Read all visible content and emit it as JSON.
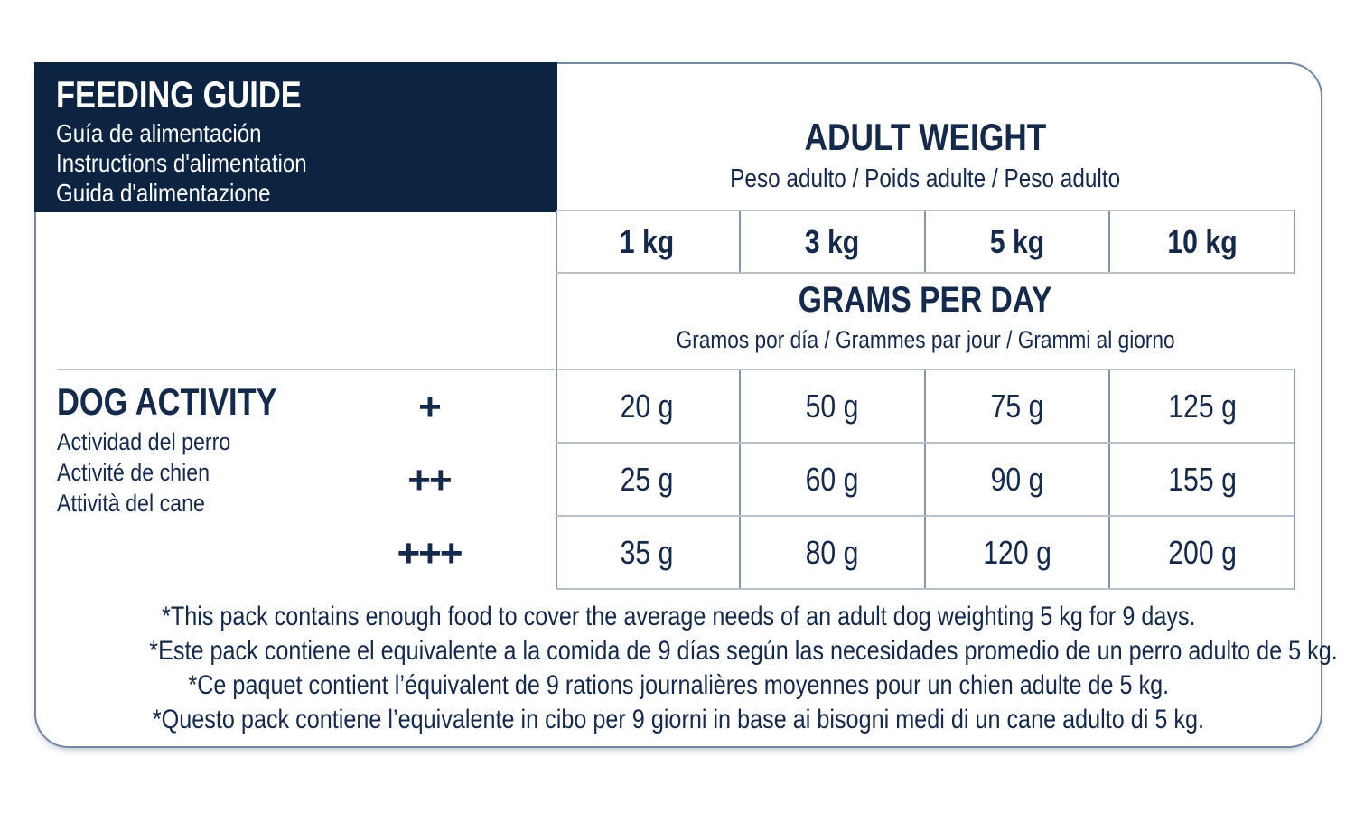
{
  "colors": {
    "navy_panel": "#0d2342",
    "text_navy": "#15294a",
    "grid_light": "#b9c1cb",
    "grid_dark": "#8695ab",
    "card_border": "#7287a6"
  },
  "header": {
    "title": "FEEDING GUIDE",
    "subtitles": [
      "Guía de alimentación",
      "Instructions d'alimentation",
      "Guida d'alimentazione"
    ]
  },
  "adult_weight": {
    "title": "ADULT WEIGHT",
    "subtitle": "Peso adulto / Poids adulte / Peso adulto"
  },
  "weights": [
    "1 kg",
    "3 kg",
    "5 kg",
    "10 kg"
  ],
  "grams": {
    "title": "GRAMS PER DAY",
    "subtitle": "Gramos por día / Grammes par jour / Grammi al giorno"
  },
  "dog_activity": {
    "title": "DOG ACTIVITY",
    "subtitles": [
      "Actividad del perro",
      "Activité de chien",
      "Attività del cane"
    ]
  },
  "rows": [
    {
      "activity": "+",
      "values": [
        "20 g",
        "50 g",
        "75 g",
        "125 g"
      ]
    },
    {
      "activity": "++",
      "values": [
        "25 g",
        "60 g",
        "90 g",
        "155 g"
      ]
    },
    {
      "activity": "+++",
      "values": [
        "35 g",
        "80 g",
        "120 g",
        "200 g"
      ]
    }
  ],
  "footnotes": [
    "*This pack contains enough food to cover the average needs of an adult dog weighting 5 kg for 9 days.",
    "*Este pack contiene el equivalente a la comida de 9 días según las necesidades promedio de un perro adulto de 5 kg.",
    "*Ce paquet contient l’équivalent de 9 rations journalières moyennes pour un chien adulte de 5 kg.",
    "*Questo pack contiene l’equivalente in cibo per 9 giorni in base ai bisogni medi di un cane adulto di 5 kg."
  ]
}
